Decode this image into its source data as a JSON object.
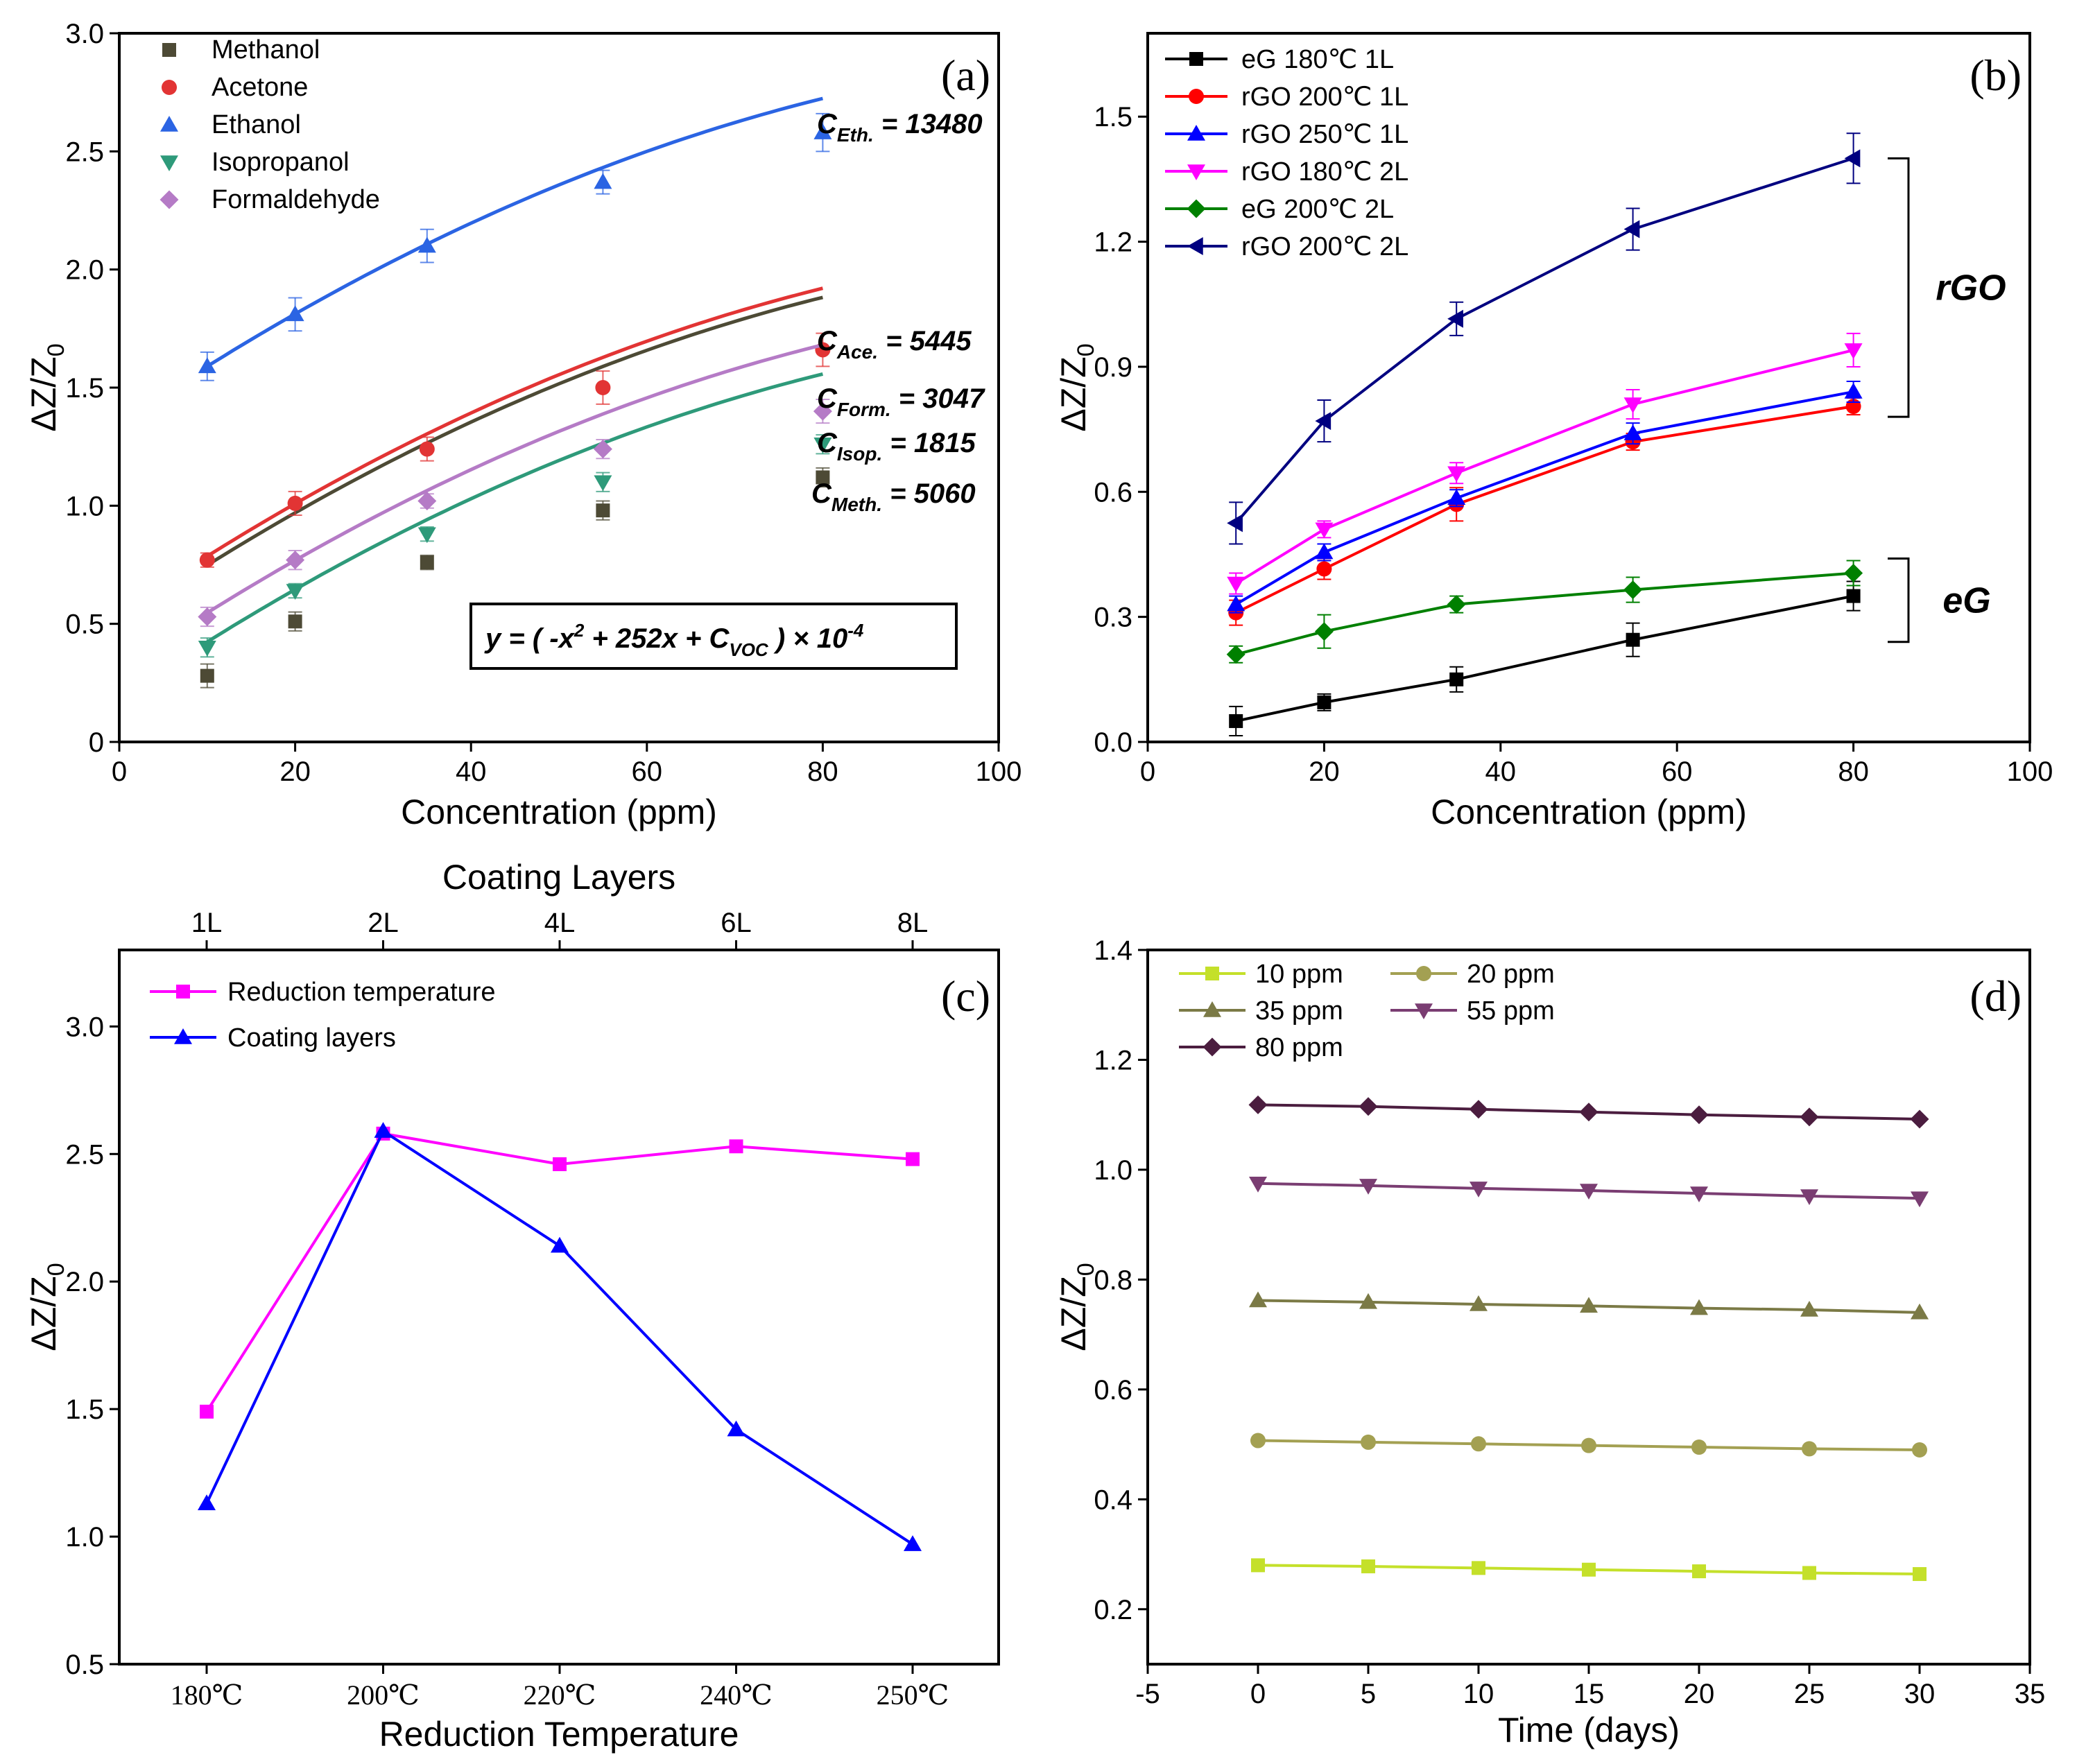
{
  "chart_data": [
    {
      "id": "a",
      "type": "scatter",
      "panel_label": "(a)",
      "xlabel": "Concentration (ppm)",
      "ylabel": "ΔZ/Z0",
      "xlim": [
        0,
        100
      ],
      "ylim": [
        0,
        3.0
      ],
      "xticks": [
        0,
        20,
        40,
        60,
        80,
        100
      ],
      "yticks": [
        0,
        0.5,
        1.0,
        1.5,
        2.0,
        2.5,
        3.0
      ],
      "ytick_labels": [
        "0",
        "0.5",
        "1.0",
        "1.5",
        "2.0",
        "2.5",
        "3.0"
      ],
      "x": [
        10,
        20,
        35,
        55,
        80
      ],
      "series": [
        {
          "name": "Methanol",
          "color": "#4d4a35",
          "marker": "square",
          "values": [
            0.28,
            0.51,
            0.76,
            0.98,
            1.12
          ],
          "errors": [
            0.05,
            0.04,
            0.03,
            0.04,
            0.04
          ],
          "fit_const": 5060,
          "fit_label": "C",
          "fit_sub": "Meth.",
          "fit_value": "= 5060"
        },
        {
          "name": "Acetone",
          "color": "#e23434",
          "marker": "circle",
          "values": [
            0.77,
            1.01,
            1.24,
            1.5,
            1.66
          ],
          "errors": [
            0.03,
            0.05,
            0.05,
            0.07,
            0.07
          ],
          "fit_const": 5445,
          "fit_label": "C",
          "fit_sub": "Ace.",
          "fit_value": "= 5445"
        },
        {
          "name": "Ethanol",
          "color": "#2b64e3",
          "marker": "triangle-up",
          "values": [
            1.59,
            1.81,
            2.1,
            2.37,
            2.58
          ],
          "errors": [
            0.06,
            0.07,
            0.07,
            0.05,
            0.08
          ],
          "fit_const": 13480,
          "fit_label": "C",
          "fit_sub": "Eth.",
          "fit_value": "= 13480"
        },
        {
          "name": "Isopropanol",
          "color": "#2e9a7a",
          "marker": "triangle-down",
          "values": [
            0.4,
            0.64,
            0.88,
            1.1,
            1.26
          ],
          "errors": [
            0.04,
            0.03,
            0.03,
            0.04,
            0.04
          ],
          "fit_const": 1815,
          "fit_label": "C",
          "fit_sub": "Isop.",
          "fit_value": "= 1815"
        },
        {
          "name": "Formaldehyde",
          "color": "#b57bc6",
          "marker": "diamond",
          "values": [
            0.53,
            0.77,
            1.02,
            1.24,
            1.4
          ],
          "errors": [
            0.04,
            0.04,
            0.03,
            0.04,
            0.05
          ],
          "fit_const": 3047,
          "fit_label": "C",
          "fit_sub": "Form.",
          "fit_value": "= 3047"
        }
      ],
      "equation": {
        "p1": "y = ( -x",
        "sup1": "2",
        "p2": " + 252x + C",
        "sub": "VOC",
        "p3": " ) × 10",
        "sup2": "-4"
      }
    },
    {
      "id": "b",
      "type": "line",
      "panel_label": "(b)",
      "xlabel": "Concentration (ppm)",
      "ylabel": "ΔZ/Z0",
      "xlim": [
        0,
        100
      ],
      "ylim": [
        0,
        1.7
      ],
      "xticks": [
        0,
        20,
        40,
        60,
        80,
        100
      ],
      "yticks": [
        0,
        0.3,
        0.6,
        0.9,
        1.2,
        1.5
      ],
      "ytick_labels": [
        "0.0",
        "0.3",
        "0.6",
        "0.9",
        "1.2",
        "1.5"
      ],
      "x": [
        10,
        20,
        35,
        55,
        80
      ],
      "series": [
        {
          "name": "eG   180℃ 1L",
          "color": "#000000",
          "marker": "square",
          "values": [
            0.05,
            0.095,
            0.15,
            0.245,
            0.35
          ],
          "errors": [
            0.035,
            0.02,
            0.03,
            0.04,
            0.035
          ]
        },
        {
          "name": "rGO 200℃ 1L",
          "color": "#ff0000",
          "marker": "circle",
          "values": [
            0.31,
            0.415,
            0.57,
            0.72,
            0.805
          ],
          "errors": [
            0.03,
            0.025,
            0.04,
            0.02,
            0.02
          ]
        },
        {
          "name": "rGO 250℃ 1L",
          "color": "#0000ff",
          "marker": "triangle-up",
          "values": [
            0.33,
            0.455,
            0.585,
            0.74,
            0.84
          ],
          "errors": [
            0.02,
            0.02,
            0.02,
            0.025,
            0.025
          ]
        },
        {
          "name": "rGO 180℃ 2L",
          "color": "#ff00ff",
          "marker": "triangle-down",
          "values": [
            0.38,
            0.51,
            0.645,
            0.81,
            0.94
          ],
          "errors": [
            0.025,
            0.02,
            0.025,
            0.035,
            0.04
          ]
        },
        {
          "name": "eG   200℃ 2L",
          "color": "#008000",
          "marker": "diamond",
          "values": [
            0.21,
            0.265,
            0.33,
            0.365,
            0.405
          ],
          "errors": [
            0.02,
            0.04,
            0.02,
            0.03,
            0.03
          ]
        },
        {
          "name": "rGO 200℃ 2L",
          "color": "#000080",
          "marker": "triangle-left",
          "values": [
            0.525,
            0.77,
            1.015,
            1.23,
            1.4
          ],
          "errors": [
            0.05,
            0.05,
            0.04,
            0.05,
            0.06
          ]
        }
      ],
      "bracket_labels": {
        "rgo": "rGO",
        "eg": "eG"
      },
      "brackets": [
        {
          "label": "rGO",
          "y_range": [
            0.78,
            1.4
          ]
        },
        {
          "label": "eG",
          "y_range": [
            0.24,
            0.44
          ]
        }
      ]
    },
    {
      "id": "c",
      "type": "line",
      "panel_label": "(c)",
      "xlabel": "Reduction Temperature",
      "x2label": "Coating Layers",
      "ylabel": "ΔZ/Z0",
      "ylim": [
        0.5,
        3.3
      ],
      "yticks": [
        0.5,
        1.0,
        1.5,
        2.0,
        2.5,
        3.0
      ],
      "ytick_labels": [
        "0.5",
        "1.0",
        "1.5",
        "2.0",
        "2.5",
        "3.0"
      ],
      "categories": [
        "180℃",
        "200℃",
        "220℃",
        "240℃",
        "250℃"
      ],
      "top_categories": [
        "1L",
        "2L",
        "4L",
        "6L",
        "8L"
      ],
      "series": [
        {
          "name": "Reduction temperature",
          "color": "#ff00ff",
          "marker": "square",
          "values": [
            1.49,
            2.58,
            2.46,
            2.53,
            2.48
          ]
        },
        {
          "name": "Coating layers",
          "color": "#0000ff",
          "marker": "triangle-up",
          "values": [
            1.13,
            2.59,
            2.14,
            1.42,
            0.97
          ]
        }
      ]
    },
    {
      "id": "d",
      "type": "line",
      "panel_label": "(d)",
      "xlabel": "Time (days)",
      "ylabel": "ΔZ/Z0",
      "xlim": [
        -5,
        35
      ],
      "ylim": [
        0.1,
        1.4
      ],
      "xticks": [
        -5,
        0,
        5,
        10,
        15,
        20,
        25,
        30,
        35
      ],
      "yticks": [
        0.2,
        0.4,
        0.6,
        0.8,
        1.0,
        1.2,
        1.4
      ],
      "ytick_labels": [
        "0.2",
        "0.4",
        "0.6",
        "0.8",
        "1.0",
        "1.2",
        "1.4"
      ],
      "x": [
        0,
        5,
        10,
        15,
        20,
        25,
        30
      ],
      "series": [
        {
          "name": "10 ppm",
          "color": "#c4e02a",
          "marker": "square",
          "values": [
            0.28,
            0.278,
            0.275,
            0.272,
            0.269,
            0.266,
            0.264
          ]
        },
        {
          "name": "20 ppm",
          "color": "#a3a052",
          "marker": "circle",
          "values": [
            0.507,
            0.504,
            0.501,
            0.498,
            0.495,
            0.492,
            0.49
          ]
        },
        {
          "name": "35 ppm",
          "color": "#7b7a46",
          "marker": "triangle-up",
          "values": [
            0.762,
            0.759,
            0.755,
            0.752,
            0.748,
            0.745,
            0.74
          ]
        },
        {
          "name": "55 ppm",
          "color": "#7a3d72",
          "marker": "triangle-down",
          "values": [
            0.975,
            0.971,
            0.966,
            0.962,
            0.957,
            0.952,
            0.948
          ]
        },
        {
          "name": "80 ppm",
          "color": "#4b1d3f",
          "marker": "diamond",
          "values": [
            1.118,
            1.115,
            1.11,
            1.105,
            1.1,
            1.096,
            1.092
          ]
        }
      ]
    }
  ]
}
